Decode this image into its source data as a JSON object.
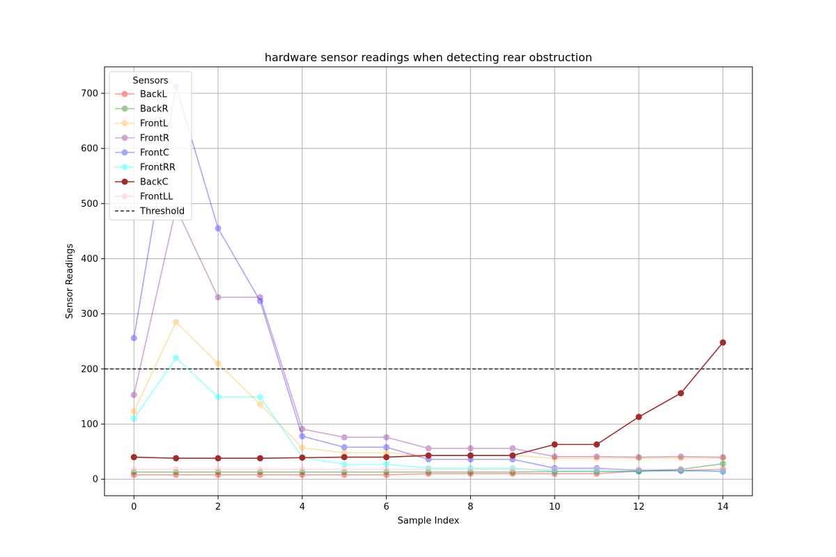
{
  "chart_data": {
    "type": "line",
    "title": "hardware sensor readings when detecting rear obstruction",
    "xlabel": "Sample Index",
    "ylabel": "Sensor Readings",
    "xlim": [
      -0.7,
      14.7
    ],
    "ylim": [
      -30,
      748
    ],
    "xticks": [
      0,
      2,
      4,
      6,
      8,
      10,
      12,
      14
    ],
    "yticks": [
      0,
      100,
      200,
      300,
      400,
      500,
      600,
      700
    ],
    "grid": true,
    "legend": {
      "title": "Sensors",
      "placement": "top-left"
    },
    "threshold": {
      "name": "Threshold",
      "value": 200,
      "color": "#000000"
    },
    "x": [
      0,
      1,
      2,
      3,
      4,
      5,
      6,
      7,
      8,
      9,
      10,
      11,
      12,
      13,
      14
    ],
    "series": [
      {
        "name": "BackL",
        "color": "#ff0000",
        "opacity": 0.4,
        "values": [
          8,
          8,
          8,
          8,
          8,
          8,
          8,
          10,
          10,
          10,
          10,
          10,
          15,
          15,
          18
        ]
      },
      {
        "name": "BackR",
        "color": "#008000",
        "opacity": 0.4,
        "values": [
          13,
          13,
          13,
          13,
          13,
          13,
          13,
          13,
          13,
          13,
          14,
          14,
          14,
          18,
          28
        ]
      },
      {
        "name": "FrontL",
        "color": "#ffa500",
        "opacity": 0.35,
        "values": [
          123,
          285,
          210,
          136,
          57,
          48,
          48,
          43,
          43,
          43,
          38,
          38,
          38,
          38,
          38
        ]
      },
      {
        "name": "FrontR",
        "color": "#800080",
        "opacity": 0.35,
        "values": [
          153,
          492,
          330,
          330,
          91,
          76,
          76,
          56,
          56,
          56,
          41,
          41,
          40,
          41,
          40
        ]
      },
      {
        "name": "FrontC",
        "color": "#0000ff",
        "opacity": 0.35,
        "values": [
          256,
          713,
          455,
          323,
          78,
          58,
          58,
          36,
          36,
          36,
          20,
          20,
          16,
          16,
          14
        ]
      },
      {
        "name": "FrontRR",
        "color": "#00ffff",
        "opacity": 0.4,
        "values": [
          110,
          220,
          149,
          149,
          40,
          27,
          27,
          20,
          20,
          20,
          15,
          15,
          15,
          15,
          15
        ]
      },
      {
        "name": "BackC",
        "color": "#a52a2a",
        "opacity": 1.0,
        "values": [
          40,
          38,
          38,
          38,
          39,
          40,
          40,
          43,
          43,
          43,
          63,
          63,
          113,
          156,
          248
        ]
      },
      {
        "name": "FrontLL",
        "color": "#ffc0cb",
        "opacity": 0.5,
        "values": [
          18,
          18,
          18,
          18,
          18,
          18,
          18,
          18,
          18,
          18,
          18,
          18,
          18,
          18,
          18
        ]
      }
    ]
  }
}
